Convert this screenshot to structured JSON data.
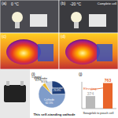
{
  "photos": [
    {
      "label": "(a)",
      "text": "0 °C"
    },
    {
      "label": "(b)",
      "text": "-20 °C",
      "note": "Complete cell"
    }
  ],
  "thermal": [
    {
      "label": "(c)"
    },
    {
      "label": "(d)"
    }
  ],
  "chart_data": [
    {
      "type": "pie",
      "label": "(i)",
      "title": "This self-standing cathode",
      "categories": [
        "Separator",
        "Cathode",
        "Li metal",
        "SSE/binder"
      ],
      "values": [
        24.8,
        62.5,
        4.2,
        8.5
      ],
      "value_labels": [
        "24.8%",
        "62.5%",
        "4.2%",
        "8.5%"
      ],
      "colors": [
        "#1f3f7a",
        "#7f9cc9",
        "#e8b830",
        "#c9d3e3"
      ],
      "data_labels": true
    },
    {
      "type": "bar",
      "label": "(j)",
      "categories": [
        null,
        null
      ],
      "values": [
        374,
        763
      ],
      "colors": [
        "#b9b9b9",
        "#e8642a"
      ],
      "ylim": [
        0,
        800
      ],
      "data_labels": true,
      "tick_labels": false,
      "annotation": "Elevating",
      "xlabel": "Swagelok to pouch cell"
    }
  ]
}
